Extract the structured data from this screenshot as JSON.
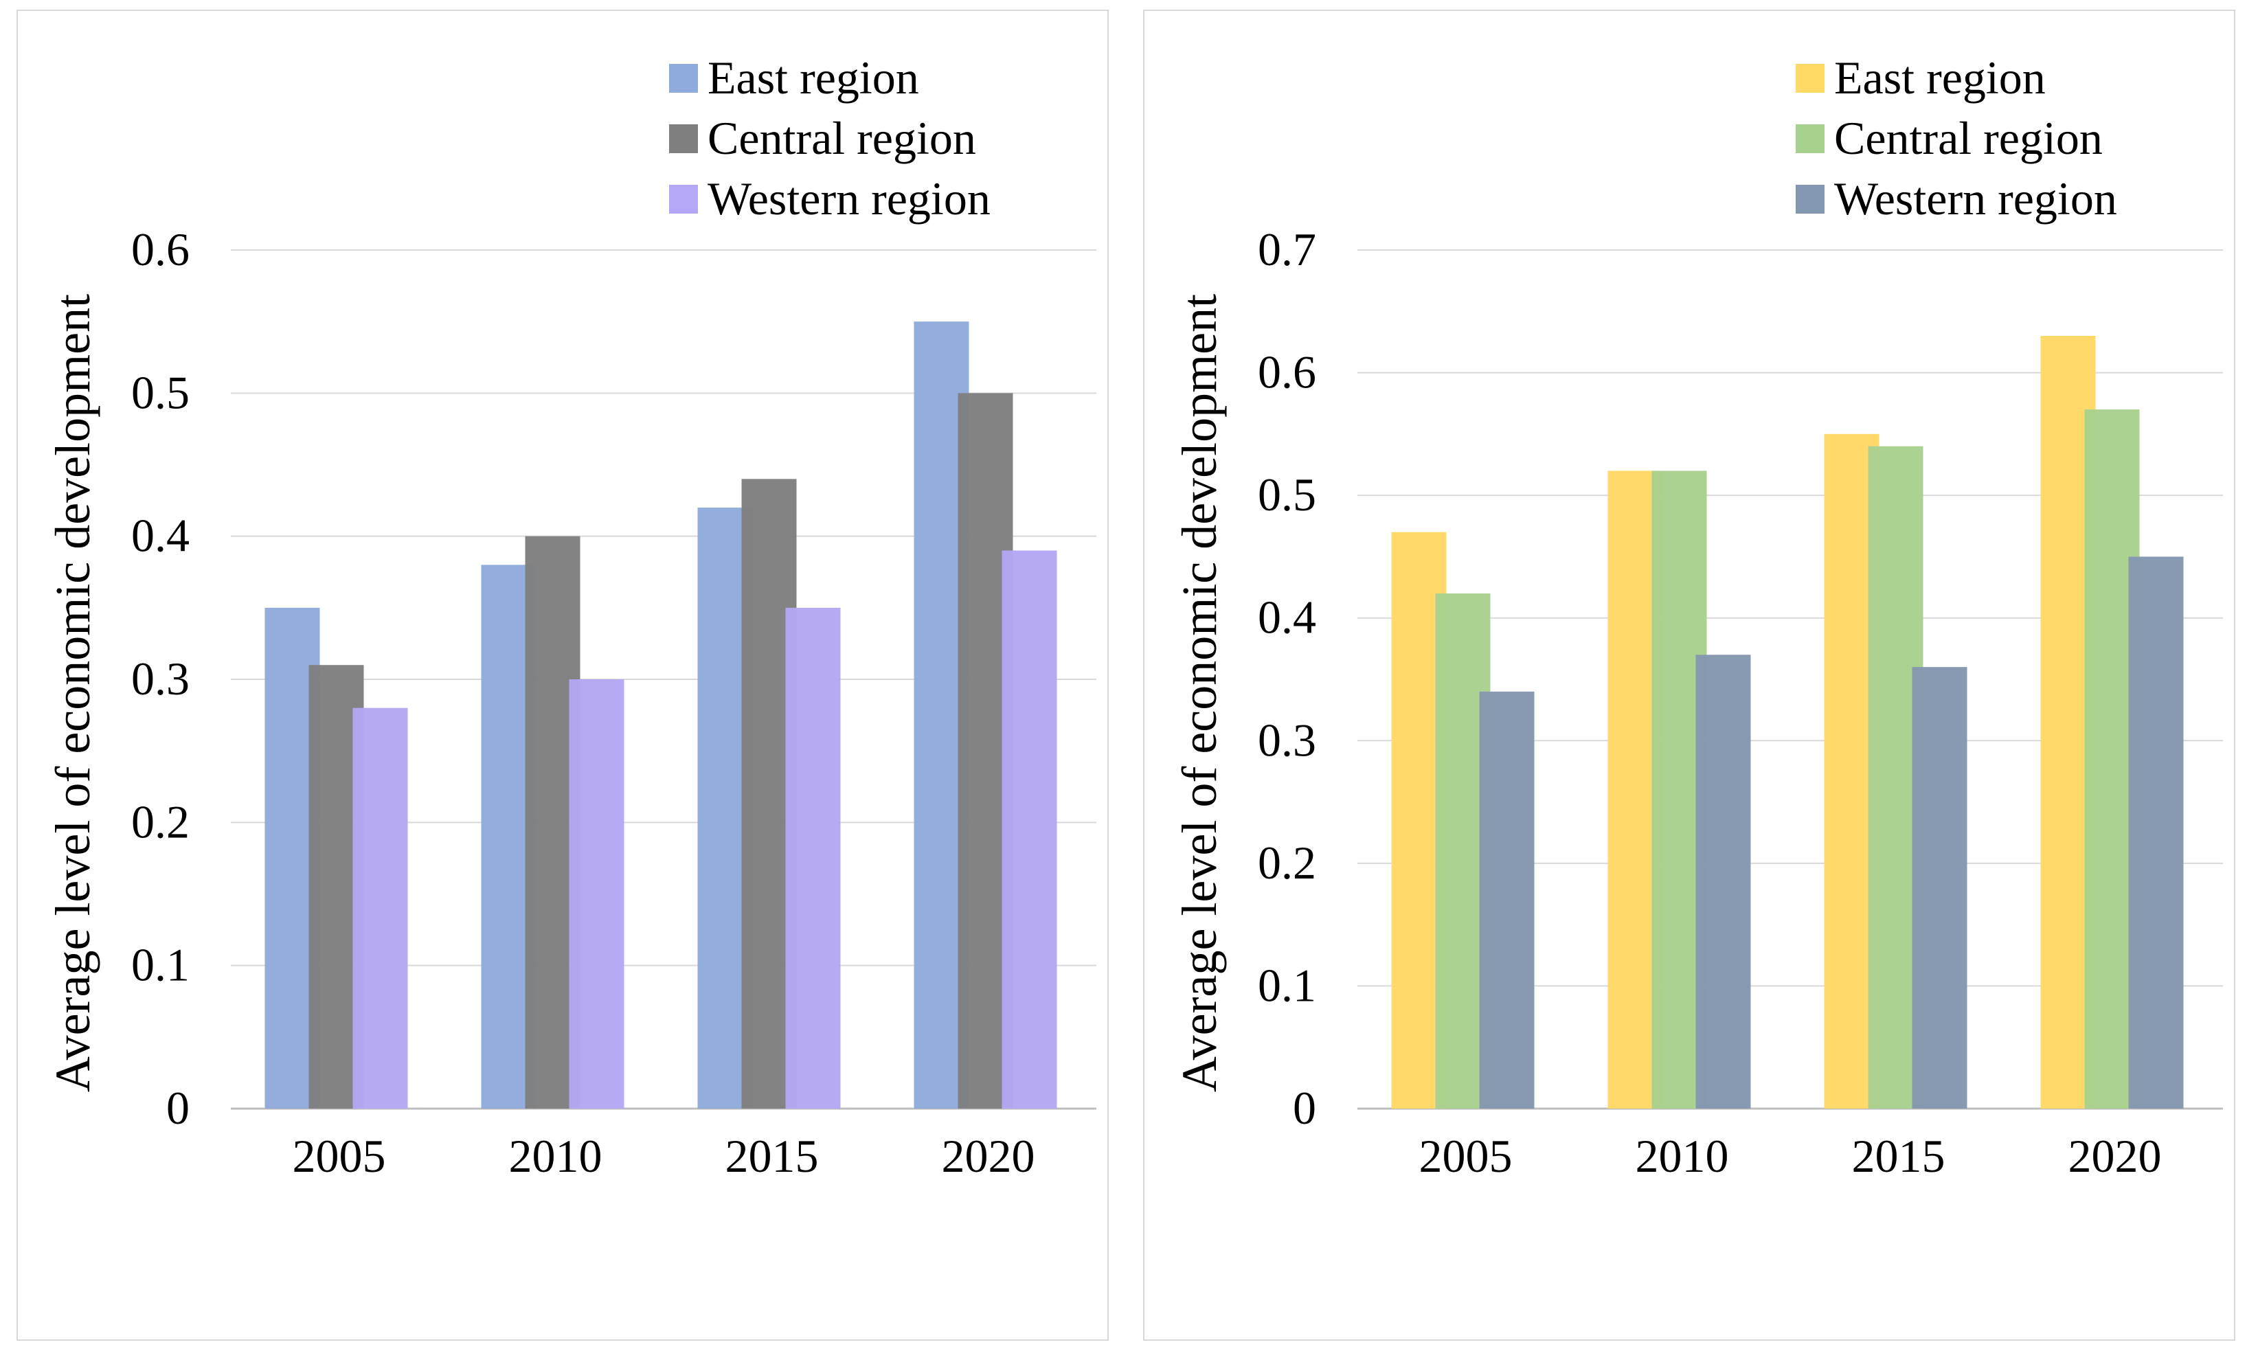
{
  "chart_data": [
    {
      "type": "bar",
      "categories": [
        "2005",
        "2010",
        "2015",
        "2020"
      ],
      "series": [
        {
          "name": "East region",
          "values": [
            0.35,
            0.38,
            0.42,
            0.55
          ],
          "color": "#8faadc"
        },
        {
          "name": "Central region",
          "values": [
            0.31,
            0.4,
            0.44,
            0.5
          ],
          "color": "#7f7f7f"
        },
        {
          "name": "Western region",
          "values": [
            0.28,
            0.3,
            0.35,
            0.39
          ],
          "color": "#b4a7f5"
        }
      ],
      "yticks": [
        "0",
        "0.1",
        "0.2",
        "0.3",
        "0.4",
        "0.5",
        "0.6"
      ],
      "ylim": [
        0,
        0.6
      ],
      "ylabel": "Average level of economic development",
      "xlabel": "",
      "title": "",
      "grid": true,
      "legend": "top-right"
    },
    {
      "type": "bar",
      "categories": [
        "2005",
        "2010",
        "2015",
        "2020"
      ],
      "series": [
        {
          "name": "East region",
          "values": [
            0.47,
            0.52,
            0.55,
            0.63
          ],
          "color": "#ffd966"
        },
        {
          "name": "Central region",
          "values": [
            0.42,
            0.52,
            0.54,
            0.57
          ],
          "color": "#a9d18e"
        },
        {
          "name": "Western region",
          "values": [
            0.34,
            0.37,
            0.36,
            0.45
          ],
          "color": "#8497b0"
        }
      ],
      "yticks": [
        "0",
        "0.1",
        "0.2",
        "0.3",
        "0.4",
        "0.5",
        "0.6",
        "0.7"
      ],
      "ylim": [
        0,
        0.7
      ],
      "ylabel": "Average level of economic development",
      "xlabel": "",
      "title": "",
      "grid": true,
      "legend": "top-right"
    }
  ]
}
